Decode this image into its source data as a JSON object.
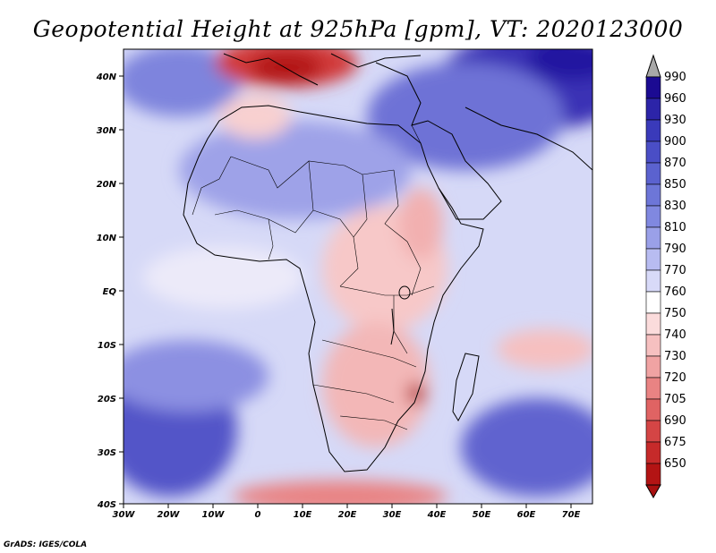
{
  "title": "Geopotential Height at 925hPa [gpm], VT: 2020123000",
  "credit": "GrADS: IGES/COLA",
  "map": {
    "lon_labels": [
      "30W",
      "20W",
      "10W",
      "0",
      "10E",
      "20E",
      "30E",
      "40E",
      "50E",
      "60E",
      "70E"
    ],
    "lat_labels": [
      "40N",
      "30N",
      "20N",
      "10N",
      "EQ",
      "10S",
      "20S",
      "30S",
      "40S"
    ]
  },
  "colorbar": {
    "labels": [
      "990",
      "960",
      "930",
      "900",
      "870",
      "850",
      "830",
      "810",
      "790",
      "770",
      "760",
      "750",
      "740",
      "730",
      "720",
      "705",
      "690",
      "675",
      "650"
    ],
    "colors": [
      "#1b0a92",
      "#2c24a8",
      "#3a3aba",
      "#4a4ec6",
      "#5b62cf",
      "#6d76d8",
      "#8088e0",
      "#9aa0e8",
      "#b8bcf1",
      "#d8daf8",
      "#ffffff",
      "#fbdcdc",
      "#f6c0c0",
      "#f0a3a3",
      "#e98383",
      "#e06363",
      "#d44545",
      "#c62a2a",
      "#b31414"
    ],
    "top_arrow_color": "#a8a8a8",
    "bottom_arrow_color": "#a81010"
  },
  "chart_data": {
    "type": "heatmap",
    "title": "Geopotential Height at 925hPa [gpm], VT: 2020123000",
    "variable": "Geopotential Height at 925hPa",
    "units": "gpm",
    "valid_time": "2020123000",
    "lon_range": [
      -30,
      75
    ],
    "lat_range": [
      -40,
      45
    ],
    "x_ticks": [
      "30W",
      "20W",
      "10W",
      "0",
      "10E",
      "20E",
      "30E",
      "40E",
      "50E",
      "60E",
      "70E"
    ],
    "y_ticks": [
      "40N",
      "30N",
      "20N",
      "10N",
      "EQ",
      "10S",
      "20S",
      "30S",
      "40S"
    ],
    "contour_levels": [
      650,
      675,
      690,
      705,
      720,
      730,
      740,
      750,
      760,
      770,
      790,
      810,
      830,
      850,
      870,
      900,
      930,
      960,
      990
    ]
  }
}
